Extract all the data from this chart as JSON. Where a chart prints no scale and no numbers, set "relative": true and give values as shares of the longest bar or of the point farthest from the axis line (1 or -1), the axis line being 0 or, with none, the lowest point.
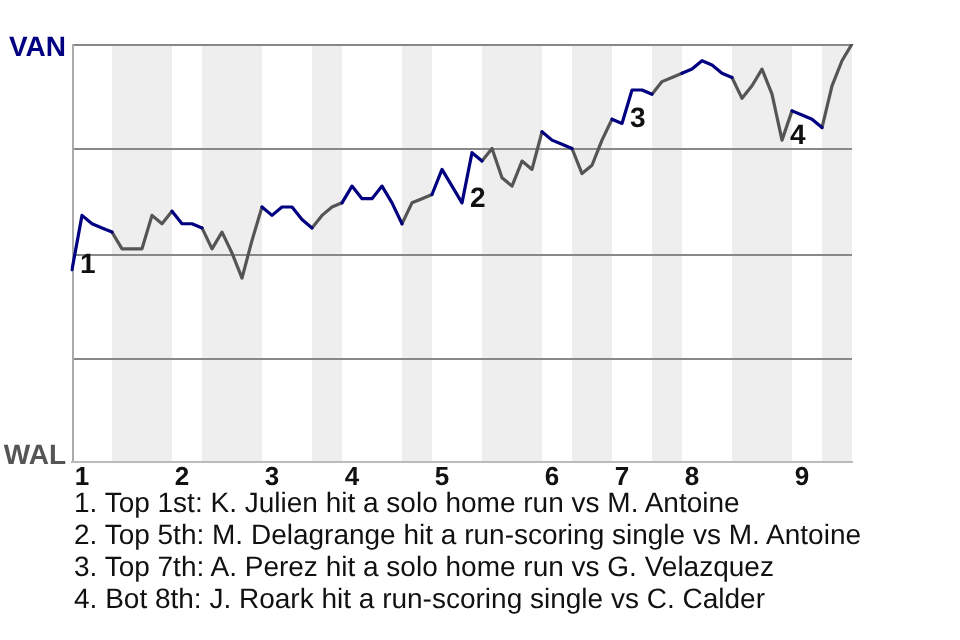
{
  "chart_data": {
    "type": "line",
    "categories": [
      null,
      "1",
      null,
      null,
      null,
      null,
      null,
      null,
      null,
      null,
      null,
      "2",
      null,
      null,
      null,
      null,
      null,
      null,
      null,
      null,
      "3",
      null,
      null,
      null,
      null,
      null,
      null,
      null,
      "4",
      null,
      null,
      null,
      null,
      null,
      null,
      null,
      null,
      "5",
      null,
      null,
      null,
      null,
      null,
      null,
      null,
      null,
      null,
      null,
      "6",
      null,
      null,
      null,
      null,
      null,
      null,
      "7",
      null,
      null,
      null,
      null,
      null,
      null,
      "8",
      null,
      null,
      null,
      null,
      null,
      null,
      null,
      null,
      null,
      null,
      "9",
      null,
      null,
      null,
      null,
      null
    ],
    "relative": true,
    "series": [
      {
        "color": "#000080",
        "values": [
          0.46,
          0.59,
          0.57,
          0.56,
          0.55,
          null,
          null,
          null,
          null,
          null,
          0.6,
          0.57,
          0.57,
          0.56,
          null,
          null,
          null,
          null,
          null,
          0.61,
          0.59,
          0.61,
          0.61,
          0.58,
          0.56,
          null,
          null,
          0.62,
          0.66,
          0.63,
          0.63,
          0.66,
          0.62,
          0.57,
          null,
          null,
          0.64,
          0.7,
          0.66,
          0.62,
          0.74,
          0.72,
          null,
          null,
          null,
          null,
          null,
          0.79,
          0.77,
          0.76,
          0.75,
          null,
          null,
          null,
          0.82,
          0.81,
          0.89,
          0.89,
          0.88,
          null,
          null,
          0.93,
          0.94,
          0.96,
          0.95,
          0.93,
          0.92,
          null,
          null,
          null,
          null,
          null,
          0.84,
          0.83,
          0.82,
          0.8,
          null,
          null,
          null
        ]
      },
      {
        "color": "#555555",
        "values": [
          null,
          null,
          null,
          null,
          0.55,
          0.51,
          0.51,
          0.51,
          0.59,
          0.57,
          0.6,
          null,
          null,
          0.56,
          0.51,
          0.55,
          0.5,
          0.44,
          0.53,
          0.61,
          null,
          null,
          null,
          null,
          0.56,
          0.59,
          0.61,
          0.62,
          null,
          null,
          null,
          null,
          null,
          0.57,
          0.62,
          0.63,
          0.64,
          null,
          null,
          null,
          null,
          0.72,
          0.75,
          0.68,
          0.66,
          0.72,
          0.7,
          0.79,
          null,
          null,
          0.75,
          0.69,
          0.71,
          0.77,
          0.82,
          null,
          null,
          null,
          0.88,
          0.91,
          0.92,
          0.93,
          null,
          null,
          null,
          null,
          0.92,
          0.87,
          0.9,
          0.94,
          0.88,
          0.77,
          0.84,
          null,
          null,
          0.8,
          0.9,
          0.96,
          1
        ]
      }
    ],
    "grid": "y",
    "marker": "none",
    "annotations": [
      "VAN",
      "WAL",
      "1",
      "2",
      "3",
      "4",
      "1. Top 1st: K. Julien hit a solo home run vs M. Antoine",
      "2. Top 5th: M. Delagrange hit a run-scoring single vs M. Antoine",
      "3. Top 7th: A. Perez hit a solo home run vs G. Velazquez",
      "4. Bot 8th: J. Roark hit a run-scoring single vs C. Calder"
    ]
  }
}
